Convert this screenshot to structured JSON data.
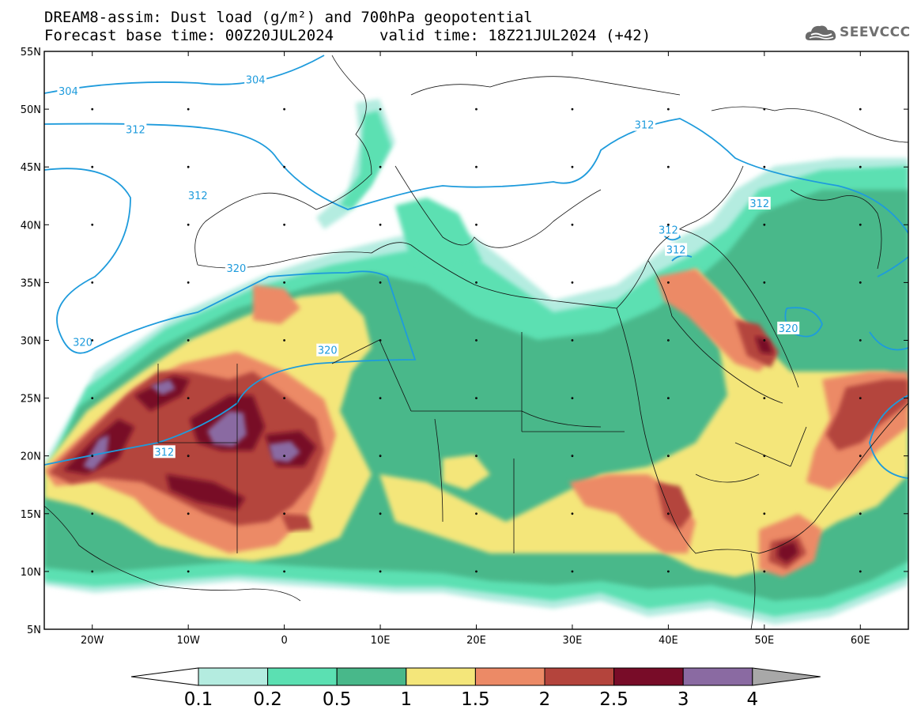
{
  "header": {
    "title_line1": "DREAM8-assim: Dust load (g/m²) and 700hPa geopotential",
    "title_line2_base": "Forecast base time: 00Z20JUL2024",
    "title_line2_valid": "valid time: 18Z21JUL2024 (+42)",
    "logo_text": "SEEVCCC",
    "logo_icon": "cloud-logo-icon"
  },
  "map": {
    "lon_range": [
      -25,
      65
    ],
    "lat_range": [
      5,
      55
    ],
    "lat_ticks": [
      "55N",
      "50N",
      "45N",
      "40N",
      "35N",
      "30N",
      "25N",
      "20N",
      "15N",
      "10N",
      "5N"
    ],
    "lon_ticks": [
      "20W",
      "10W",
      "0",
      "10E",
      "20E",
      "30E",
      "40E",
      "50E",
      "60E"
    ],
    "contour_labels": [
      "304",
      "304",
      "312",
      "312",
      "312",
      "312",
      "312",
      "312",
      "320",
      "320",
      "320",
      "320",
      "312"
    ],
    "contour_color": "#1e9bdc"
  },
  "legend": {
    "levels": [
      "0.1",
      "0.2",
      "0.5",
      "1",
      "1.5",
      "2",
      "2.5",
      "3",
      "4"
    ],
    "colors": [
      "#b4ece0",
      "#5be0b2",
      "#48b88a",
      "#f4e67a",
      "#ec8a66",
      "#b4443c",
      "#780c28",
      "#8a6aa2"
    ],
    "below_color": "#ffffff",
    "above_color": "#a8a8a8"
  }
}
